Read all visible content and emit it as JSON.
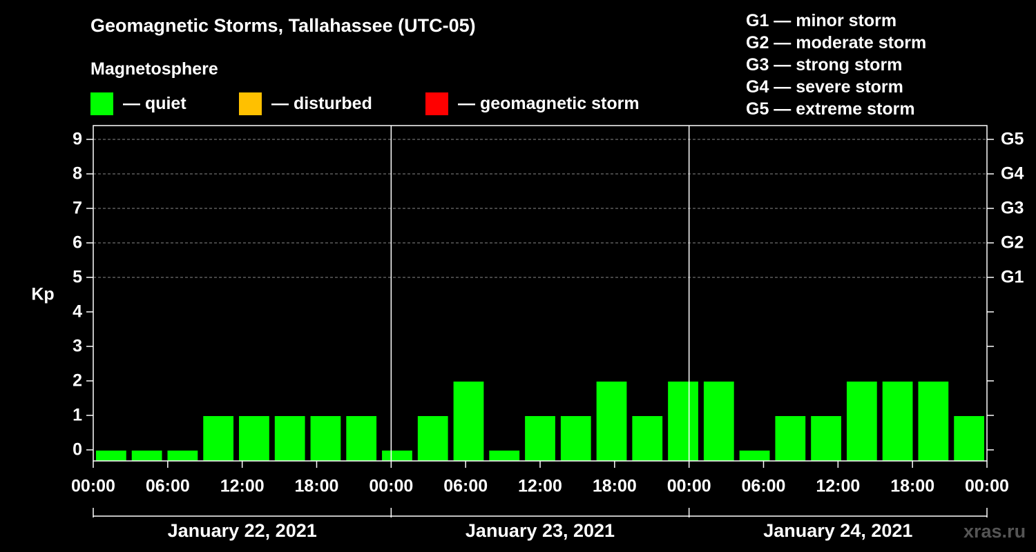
{
  "title": "Geomagnetic Storms, Tallahassee (UTC-05)",
  "subtitle": "Magnetosphere",
  "legend": [
    {
      "color": "#00ff00",
      "label": "— quiet"
    },
    {
      "color": "#ffc000",
      "label": "— disturbed"
    },
    {
      "color": "#ff0000",
      "label": "— geomagnetic storm"
    }
  ],
  "g_scale": [
    "G1 — minor storm",
    "G2 — moderate storm",
    "G3 — strong storm",
    "G4 — severe storm",
    "G5 — extreme storm"
  ],
  "watermark": "xras.ru",
  "chart_data": {
    "type": "bar",
    "ylabel": "Kp",
    "ylim": [
      0,
      9
    ],
    "yticks": [
      0,
      1,
      2,
      3,
      4,
      5,
      6,
      7,
      8,
      9
    ],
    "g_axis": [
      {
        "kp": 5,
        "label": "G1"
      },
      {
        "kp": 6,
        "label": "G2"
      },
      {
        "kp": 7,
        "label": "G3"
      },
      {
        "kp": 8,
        "label": "G4"
      },
      {
        "kp": 9,
        "label": "G5"
      }
    ],
    "days": [
      "January 22, 2021",
      "January 23, 2021",
      "January 24, 2021"
    ],
    "xticks": [
      "00:00",
      "06:00",
      "12:00",
      "18:00",
      "00:00",
      "06:00",
      "12:00",
      "18:00",
      "00:00",
      "06:00",
      "12:00",
      "18:00",
      "00:00"
    ],
    "grid": "dashed horizontal at Kp 5–9",
    "bar_color": "#00ff00",
    "values": [
      0,
      0,
      0,
      1,
      1,
      1,
      1,
      1,
      0,
      1,
      2,
      0,
      1,
      1,
      2,
      1,
      2,
      2,
      0,
      1,
      1,
      2,
      2,
      2,
      1
    ]
  }
}
